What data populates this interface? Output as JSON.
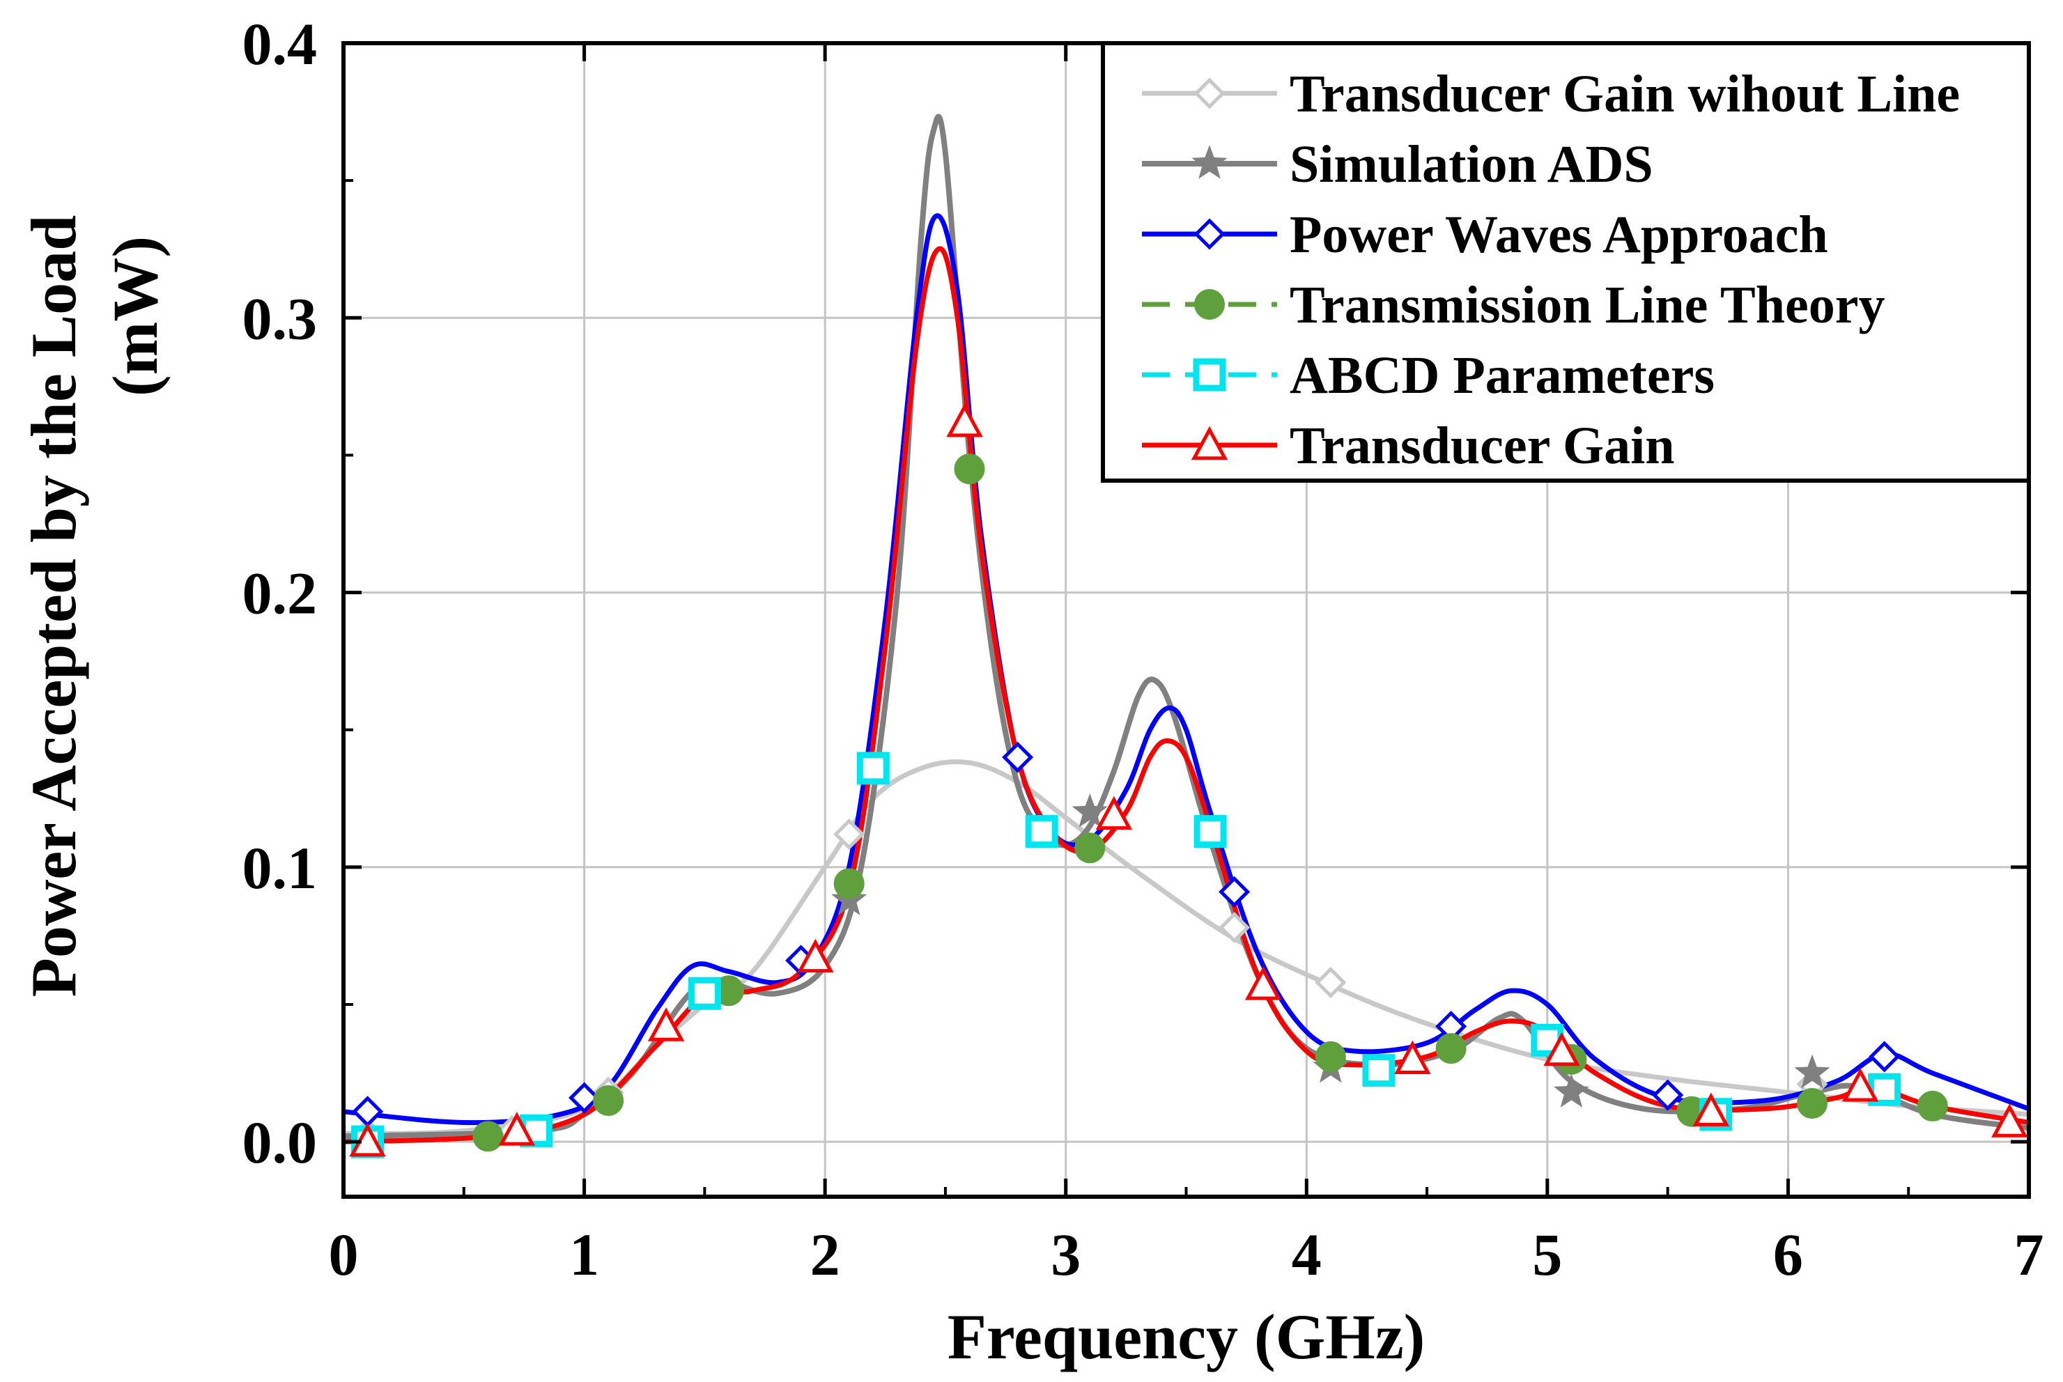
{
  "chart_data": {
    "type": "line",
    "title": "",
    "xlabel": "Frequency (GHz)",
    "ylabel_line1": "Power Accepted by the Load",
    "ylabel_line2": "(mW)",
    "xlim": [
      0,
      7
    ],
    "ylim": [
      -0.02,
      0.4
    ],
    "xticks": [
      0,
      1,
      2,
      3,
      4,
      5,
      6,
      7
    ],
    "xtick_labels": [
      "0",
      "1",
      "2",
      "3",
      "4",
      "5",
      "6",
      "7"
    ],
    "yticks": [
      0.0,
      0.1,
      0.2,
      0.3,
      0.4
    ],
    "ytick_labels": [
      "0.0",
      "0.1",
      "0.2",
      "0.3",
      "0.4"
    ],
    "grid": true,
    "legend_position": "top-right",
    "series": [
      {
        "name": "Transducer Gain wihout Line",
        "color": "#c8c8c8",
        "marker": "diamond",
        "dash": "solid",
        "curve": [
          [
            0,
            0.003
          ],
          [
            0.5,
            0.004
          ],
          [
            1.0,
            0.012
          ],
          [
            1.3,
            0.035
          ],
          [
            1.5,
            0.05
          ],
          [
            1.7,
            0.062
          ],
          [
            2.0,
            0.1
          ],
          [
            2.2,
            0.125
          ],
          [
            2.4,
            0.136
          ],
          [
            2.6,
            0.138
          ],
          [
            2.8,
            0.131
          ],
          [
            3.0,
            0.118
          ],
          [
            3.3,
            0.098
          ],
          [
            3.7,
            0.074
          ],
          [
            4.1,
            0.057
          ],
          [
            4.5,
            0.043
          ],
          [
            5.0,
            0.03
          ],
          [
            5.5,
            0.023
          ],
          [
            6.0,
            0.018
          ],
          [
            6.5,
            0.013
          ],
          [
            7.0,
            0.01
          ]
        ],
        "markers": [
          [
            0.1,
            0.003
          ],
          [
            0.7,
            0.004
          ],
          [
            1.1,
            0.018
          ],
          [
            2.1,
            0.112
          ],
          [
            3.7,
            0.078
          ],
          [
            4.1,
            0.058
          ],
          [
            6.1,
            0.021
          ]
        ]
      },
      {
        "name": "Simulation ADS",
        "color": "#808080",
        "marker": "star",
        "dash": "solid",
        "curve": [
          [
            0,
            0.002
          ],
          [
            0.8,
            0.004
          ],
          [
            1.0,
            0.01
          ],
          [
            1.2,
            0.025
          ],
          [
            1.4,
            0.05
          ],
          [
            1.5,
            0.058
          ],
          [
            1.6,
            0.058
          ],
          [
            1.8,
            0.054
          ],
          [
            2.0,
            0.064
          ],
          [
            2.15,
            0.1
          ],
          [
            2.3,
            0.2
          ],
          [
            2.4,
            0.33
          ],
          [
            2.45,
            0.368
          ],
          [
            2.5,
            0.36
          ],
          [
            2.6,
            0.25
          ],
          [
            2.7,
            0.175
          ],
          [
            2.8,
            0.13
          ],
          [
            2.9,
            0.113
          ],
          [
            3.0,
            0.108
          ],
          [
            3.1,
            0.115
          ],
          [
            3.2,
            0.135
          ],
          [
            3.3,
            0.162
          ],
          [
            3.37,
            0.168
          ],
          [
            3.45,
            0.155
          ],
          [
            3.6,
            0.11
          ],
          [
            3.8,
            0.06
          ],
          [
            4.0,
            0.034
          ],
          [
            4.3,
            0.028
          ],
          [
            4.6,
            0.033
          ],
          [
            4.8,
            0.045
          ],
          [
            4.9,
            0.044
          ],
          [
            5.1,
            0.022
          ],
          [
            5.4,
            0.012
          ],
          [
            5.8,
            0.012
          ],
          [
            6.1,
            0.018
          ],
          [
            6.3,
            0.02
          ],
          [
            6.6,
            0.01
          ],
          [
            7.0,
            0.005
          ]
        ],
        "markers": [
          [
            2.1,
            0.088
          ],
          [
            3.1,
            0.12
          ],
          [
            4.1,
            0.027
          ],
          [
            5.1,
            0.018
          ],
          [
            6.1,
            0.025
          ]
        ]
      },
      {
        "name": "Power Waves Approach",
        "color": "#0000ff",
        "marker": "diamond",
        "dash": "solid",
        "curve": [
          [
            0,
            0.011
          ],
          [
            0.5,
            0.007
          ],
          [
            0.9,
            0.01
          ],
          [
            1.1,
            0.02
          ],
          [
            1.3,
            0.048
          ],
          [
            1.45,
            0.064
          ],
          [
            1.6,
            0.062
          ],
          [
            1.8,
            0.058
          ],
          [
            1.95,
            0.066
          ],
          [
            2.1,
            0.1
          ],
          [
            2.25,
            0.19
          ],
          [
            2.38,
            0.3
          ],
          [
            2.46,
            0.337
          ],
          [
            2.55,
            0.31
          ],
          [
            2.65,
            0.22
          ],
          [
            2.8,
            0.14
          ],
          [
            2.95,
            0.112
          ],
          [
            3.1,
            0.11
          ],
          [
            3.25,
            0.128
          ],
          [
            3.35,
            0.15
          ],
          [
            3.43,
            0.158
          ],
          [
            3.5,
            0.15
          ],
          [
            3.6,
            0.12
          ],
          [
            3.8,
            0.068
          ],
          [
            4.0,
            0.04
          ],
          [
            4.2,
            0.033
          ],
          [
            4.5,
            0.036
          ],
          [
            4.7,
            0.048
          ],
          [
            4.85,
            0.055
          ],
          [
            5.0,
            0.05
          ],
          [
            5.2,
            0.03
          ],
          [
            5.5,
            0.016
          ],
          [
            5.9,
            0.015
          ],
          [
            6.2,
            0.022
          ],
          [
            6.4,
            0.032
          ],
          [
            6.6,
            0.025
          ],
          [
            7.0,
            0.012
          ]
        ],
        "markers": [
          [
            0.1,
            0.011
          ],
          [
            1.0,
            0.016
          ],
          [
            1.9,
            0.066
          ],
          [
            2.8,
            0.14
          ],
          [
            3.7,
            0.091
          ],
          [
            4.6,
            0.042
          ],
          [
            5.5,
            0.017
          ],
          [
            6.4,
            0.031
          ]
        ]
      },
      {
        "name": "Transmission Line Theory",
        "color": "#5fa03c",
        "marker": "circle",
        "dash": "dashed",
        "curve": [
          [
            0,
            0.0
          ],
          [
            0.6,
            0.002
          ],
          [
            1.0,
            0.01
          ],
          [
            1.3,
            0.035
          ],
          [
            1.5,
            0.053
          ],
          [
            1.7,
            0.055
          ],
          [
            1.9,
            0.062
          ],
          [
            2.1,
            0.092
          ],
          [
            2.25,
            0.18
          ],
          [
            2.38,
            0.29
          ],
          [
            2.47,
            0.325
          ],
          [
            2.55,
            0.3
          ],
          [
            2.65,
            0.215
          ],
          [
            2.8,
            0.14
          ],
          [
            2.95,
            0.112
          ],
          [
            3.1,
            0.106
          ],
          [
            3.25,
            0.12
          ],
          [
            3.35,
            0.14
          ],
          [
            3.42,
            0.146
          ],
          [
            3.5,
            0.14
          ],
          [
            3.6,
            0.115
          ],
          [
            3.8,
            0.06
          ],
          [
            4.0,
            0.033
          ],
          [
            4.2,
            0.028
          ],
          [
            4.5,
            0.031
          ],
          [
            4.7,
            0.04
          ],
          [
            4.85,
            0.044
          ],
          [
            5.0,
            0.04
          ],
          [
            5.2,
            0.025
          ],
          [
            5.5,
            0.013
          ],
          [
            5.9,
            0.012
          ],
          [
            6.2,
            0.016
          ],
          [
            6.35,
            0.02
          ],
          [
            6.6,
            0.013
          ],
          [
            7.0,
            0.007
          ]
        ],
        "markers": [
          [
            0.6,
            0.002
          ],
          [
            1.1,
            0.015
          ],
          [
            1.6,
            0.055
          ],
          [
            2.1,
            0.094
          ],
          [
            2.6,
            0.245
          ],
          [
            3.1,
            0.107
          ],
          [
            4.1,
            0.031
          ],
          [
            4.6,
            0.034
          ],
          [
            5.1,
            0.03
          ],
          [
            5.6,
            0.011
          ],
          [
            6.1,
            0.014
          ],
          [
            6.6,
            0.013
          ]
        ]
      },
      {
        "name": "ABCD Parameters",
        "color": "#00e5ee",
        "marker": "square",
        "dash": "dashed",
        "curve": [
          [
            0,
            0.0
          ],
          [
            0.6,
            0.002
          ],
          [
            1.0,
            0.01
          ],
          [
            1.3,
            0.035
          ],
          [
            1.5,
            0.053
          ],
          [
            1.7,
            0.055
          ],
          [
            1.9,
            0.062
          ],
          [
            2.1,
            0.092
          ],
          [
            2.25,
            0.18
          ],
          [
            2.38,
            0.29
          ],
          [
            2.47,
            0.325
          ],
          [
            2.55,
            0.3
          ],
          [
            2.65,
            0.215
          ],
          [
            2.8,
            0.14
          ],
          [
            2.95,
            0.112
          ],
          [
            3.1,
            0.106
          ],
          [
            3.25,
            0.12
          ],
          [
            3.35,
            0.14
          ],
          [
            3.42,
            0.146
          ],
          [
            3.5,
            0.14
          ],
          [
            3.6,
            0.115
          ],
          [
            3.8,
            0.06
          ],
          [
            4.0,
            0.033
          ],
          [
            4.2,
            0.028
          ],
          [
            4.5,
            0.031
          ],
          [
            4.7,
            0.04
          ],
          [
            4.85,
            0.044
          ],
          [
            5.0,
            0.04
          ],
          [
            5.2,
            0.025
          ],
          [
            5.5,
            0.013
          ],
          [
            5.9,
            0.012
          ],
          [
            6.2,
            0.016
          ],
          [
            6.35,
            0.02
          ],
          [
            6.6,
            0.013
          ],
          [
            7.0,
            0.007
          ]
        ],
        "markers": [
          [
            0.1,
            0.0
          ],
          [
            0.8,
            0.004
          ],
          [
            1.5,
            0.054
          ],
          [
            2.2,
            0.136
          ],
          [
            2.9,
            0.113
          ],
          [
            3.6,
            0.113
          ],
          [
            4.3,
            0.026
          ],
          [
            5.0,
            0.037
          ],
          [
            5.7,
            0.01
          ],
          [
            6.4,
            0.019
          ]
        ]
      },
      {
        "name": "Transducer Gain",
        "color": "#ff0000",
        "marker": "triangle",
        "dash": "solid",
        "curve": [
          [
            0,
            0.0
          ],
          [
            0.6,
            0.002
          ],
          [
            1.0,
            0.01
          ],
          [
            1.3,
            0.035
          ],
          [
            1.5,
            0.053
          ],
          [
            1.7,
            0.055
          ],
          [
            1.9,
            0.062
          ],
          [
            2.1,
            0.092
          ],
          [
            2.25,
            0.18
          ],
          [
            2.38,
            0.29
          ],
          [
            2.47,
            0.325
          ],
          [
            2.55,
            0.3
          ],
          [
            2.65,
            0.215
          ],
          [
            2.8,
            0.14
          ],
          [
            2.95,
            0.112
          ],
          [
            3.1,
            0.106
          ],
          [
            3.25,
            0.12
          ],
          [
            3.35,
            0.14
          ],
          [
            3.42,
            0.146
          ],
          [
            3.5,
            0.14
          ],
          [
            3.6,
            0.115
          ],
          [
            3.8,
            0.06
          ],
          [
            4.0,
            0.033
          ],
          [
            4.2,
            0.028
          ],
          [
            4.5,
            0.031
          ],
          [
            4.7,
            0.04
          ],
          [
            4.85,
            0.044
          ],
          [
            5.0,
            0.04
          ],
          [
            5.2,
            0.025
          ],
          [
            5.5,
            0.013
          ],
          [
            5.9,
            0.012
          ],
          [
            6.2,
            0.016
          ],
          [
            6.35,
            0.02
          ],
          [
            6.6,
            0.013
          ],
          [
            7.0,
            0.007
          ]
        ],
        "markers": [
          [
            0.1,
            0.0
          ],
          [
            0.72,
            0.004
          ],
          [
            1.34,
            0.042
          ],
          [
            1.96,
            0.067
          ],
          [
            2.58,
            0.262
          ],
          [
            3.2,
            0.119
          ],
          [
            3.82,
            0.057
          ],
          [
            4.44,
            0.03
          ],
          [
            5.06,
            0.033
          ],
          [
            5.68,
            0.011
          ],
          [
            6.3,
            0.02
          ],
          [
            6.92,
            0.007
          ]
        ]
      }
    ]
  }
}
